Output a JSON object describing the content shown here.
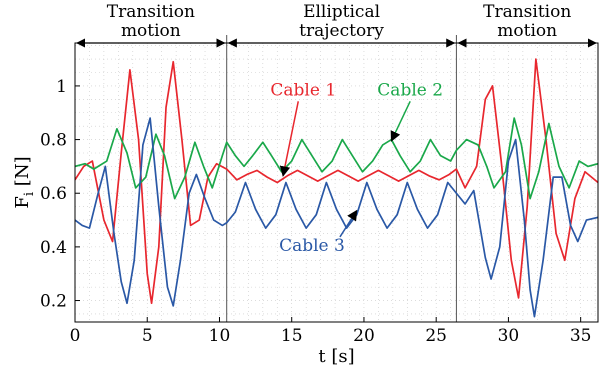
{
  "chart_data": {
    "type": "line",
    "xlabel": "t [s]",
    "ylabel": "F_i [N]",
    "xlim": [
      0,
      36.2
    ],
    "ylim": [
      0.12,
      1.16
    ],
    "xticks": [
      0,
      5,
      10,
      15,
      20,
      25,
      30,
      35
    ],
    "yticks": [
      0.2,
      0.4,
      0.6,
      0.8,
      1.0
    ],
    "ytick_labels": [
      "0.2",
      "0.4",
      "0.6",
      "0.8",
      "1"
    ],
    "grid": "minor-dotted",
    "phase_boundaries": [
      10.5,
      26.4
    ],
    "phases": [
      {
        "label_line1": "Transition",
        "label_line2": "motion",
        "from": 0,
        "to": 10.5
      },
      {
        "label_line1": "Elliptical",
        "label_line2": "trajectory",
        "from": 10.5,
        "to": 26.4
      },
      {
        "label_line1": "Transition",
        "label_line2": "motion",
        "from": 26.4,
        "to": 36.2
      }
    ],
    "series": [
      {
        "name": "Cable 1",
        "color": "#e8272e",
        "points": [
          [
            0,
            0.65
          ],
          [
            0.6,
            0.7
          ],
          [
            1.2,
            0.72
          ],
          [
            2.0,
            0.5
          ],
          [
            2.6,
            0.42
          ],
          [
            3.2,
            0.75
          ],
          [
            3.8,
            1.06
          ],
          [
            4.4,
            0.8
          ],
          [
            5.0,
            0.3
          ],
          [
            5.3,
            0.19
          ],
          [
            5.8,
            0.4
          ],
          [
            6.3,
            0.92
          ],
          [
            6.8,
            1.09
          ],
          [
            7.4,
            0.8
          ],
          [
            8.0,
            0.48
          ],
          [
            8.6,
            0.5
          ],
          [
            9.2,
            0.66
          ],
          [
            9.8,
            0.71
          ],
          [
            10.5,
            0.69
          ],
          [
            11.2,
            0.65
          ],
          [
            11.9,
            0.67
          ],
          [
            12.6,
            0.685
          ],
          [
            13.3,
            0.66
          ],
          [
            14.0,
            0.64
          ],
          [
            14.7,
            0.665
          ],
          [
            15.4,
            0.685
          ],
          [
            16.1,
            0.665
          ],
          [
            16.8,
            0.645
          ],
          [
            17.5,
            0.665
          ],
          [
            18.2,
            0.685
          ],
          [
            18.9,
            0.665
          ],
          [
            19.6,
            0.645
          ],
          [
            20.3,
            0.665
          ],
          [
            21.0,
            0.685
          ],
          [
            21.7,
            0.665
          ],
          [
            22.4,
            0.645
          ],
          [
            23.1,
            0.665
          ],
          [
            23.8,
            0.685
          ],
          [
            24.5,
            0.665
          ],
          [
            25.2,
            0.65
          ],
          [
            25.9,
            0.67
          ],
          [
            26.4,
            0.69
          ],
          [
            27.0,
            0.62
          ],
          [
            27.8,
            0.7
          ],
          [
            28.4,
            0.95
          ],
          [
            28.9,
            1.0
          ],
          [
            29.5,
            0.72
          ],
          [
            30.2,
            0.35
          ],
          [
            30.7,
            0.21
          ],
          [
            31.3,
            0.55
          ],
          [
            31.9,
            1.1
          ],
          [
            32.6,
            0.8
          ],
          [
            33.3,
            0.45
          ],
          [
            33.9,
            0.35
          ],
          [
            34.6,
            0.58
          ],
          [
            35.3,
            0.68
          ],
          [
            36.2,
            0.64
          ]
        ]
      },
      {
        "name": "Cable 2",
        "color": "#1aa84a",
        "points": [
          [
            0,
            0.7
          ],
          [
            0.7,
            0.71
          ],
          [
            1.3,
            0.69
          ],
          [
            2.2,
            0.72
          ],
          [
            2.9,
            0.84
          ],
          [
            3.6,
            0.75
          ],
          [
            4.2,
            0.62
          ],
          [
            4.9,
            0.66
          ],
          [
            5.6,
            0.82
          ],
          [
            6.2,
            0.74
          ],
          [
            6.9,
            0.58
          ],
          [
            7.6,
            0.66
          ],
          [
            8.3,
            0.79
          ],
          [
            8.9,
            0.7
          ],
          [
            9.5,
            0.62
          ],
          [
            10.2,
            0.74
          ],
          [
            10.5,
            0.79
          ],
          [
            11.1,
            0.74
          ],
          [
            11.7,
            0.7
          ],
          [
            12.3,
            0.74
          ],
          [
            13.0,
            0.79
          ],
          [
            13.6,
            0.74
          ],
          [
            14.3,
            0.68
          ],
          [
            15.0,
            0.72
          ],
          [
            15.7,
            0.8
          ],
          [
            16.4,
            0.74
          ],
          [
            17.1,
            0.68
          ],
          [
            17.8,
            0.72
          ],
          [
            18.5,
            0.8
          ],
          [
            19.2,
            0.74
          ],
          [
            19.9,
            0.68
          ],
          [
            20.6,
            0.72
          ],
          [
            21.3,
            0.78
          ],
          [
            21.9,
            0.8
          ],
          [
            22.5,
            0.74
          ],
          [
            23.2,
            0.68
          ],
          [
            23.9,
            0.72
          ],
          [
            24.6,
            0.8
          ],
          [
            25.3,
            0.74
          ],
          [
            26.0,
            0.72
          ],
          [
            26.4,
            0.76
          ],
          [
            27.1,
            0.8
          ],
          [
            27.9,
            0.78
          ],
          [
            28.5,
            0.7
          ],
          [
            29.0,
            0.62
          ],
          [
            29.8,
            0.68
          ],
          [
            30.4,
            0.88
          ],
          [
            30.9,
            0.78
          ],
          [
            31.5,
            0.58
          ],
          [
            32.1,
            0.68
          ],
          [
            32.8,
            0.86
          ],
          [
            33.5,
            0.7
          ],
          [
            34.2,
            0.62
          ],
          [
            34.9,
            0.72
          ],
          [
            35.5,
            0.7
          ],
          [
            36.2,
            0.71
          ]
        ]
      },
      {
        "name": "Cable 3",
        "color": "#2a58a6",
        "points": [
          [
            0,
            0.5
          ],
          [
            0.5,
            0.48
          ],
          [
            1.0,
            0.47
          ],
          [
            1.6,
            0.6
          ],
          [
            2.1,
            0.7
          ],
          [
            2.7,
            0.45
          ],
          [
            3.2,
            0.27
          ],
          [
            3.6,
            0.19
          ],
          [
            4.1,
            0.35
          ],
          [
            4.7,
            0.78
          ],
          [
            5.2,
            0.88
          ],
          [
            5.8,
            0.55
          ],
          [
            6.4,
            0.25
          ],
          [
            6.8,
            0.18
          ],
          [
            7.3,
            0.35
          ],
          [
            7.9,
            0.6
          ],
          [
            8.4,
            0.67
          ],
          [
            9.0,
            0.58
          ],
          [
            9.6,
            0.5
          ],
          [
            10.2,
            0.48
          ],
          [
            10.5,
            0.49
          ],
          [
            11.1,
            0.53
          ],
          [
            11.8,
            0.64
          ],
          [
            12.5,
            0.54
          ],
          [
            13.2,
            0.47
          ],
          [
            13.9,
            0.52
          ],
          [
            14.6,
            0.64
          ],
          [
            15.3,
            0.54
          ],
          [
            16.0,
            0.47
          ],
          [
            16.7,
            0.52
          ],
          [
            17.4,
            0.64
          ],
          [
            18.1,
            0.54
          ],
          [
            18.8,
            0.47
          ],
          [
            19.5,
            0.52
          ],
          [
            20.2,
            0.64
          ],
          [
            20.9,
            0.54
          ],
          [
            21.6,
            0.47
          ],
          [
            22.3,
            0.52
          ],
          [
            23.0,
            0.64
          ],
          [
            23.7,
            0.54
          ],
          [
            24.4,
            0.47
          ],
          [
            25.1,
            0.52
          ],
          [
            25.8,
            0.64
          ],
          [
            26.4,
            0.6
          ],
          [
            27.0,
            0.56
          ],
          [
            27.6,
            0.61
          ],
          [
            28.4,
            0.36
          ],
          [
            28.8,
            0.28
          ],
          [
            29.4,
            0.4
          ],
          [
            30.0,
            0.72
          ],
          [
            30.5,
            0.8
          ],
          [
            31.1,
            0.5
          ],
          [
            31.5,
            0.24
          ],
          [
            31.8,
            0.14
          ],
          [
            32.4,
            0.35
          ],
          [
            33.1,
            0.66
          ],
          [
            33.7,
            0.66
          ],
          [
            34.3,
            0.48
          ],
          [
            34.8,
            0.42
          ],
          [
            35.4,
            0.5
          ],
          [
            36.2,
            0.51
          ]
        ]
      }
    ],
    "annotations": [
      {
        "text": "Cable 1",
        "series": "Cable 1",
        "label_x": 15.8,
        "label_y": 0.965,
        "arrow_to_x": 14.4,
        "arrow_to_y": 0.665
      },
      {
        "text": "Cable 2",
        "series": "Cable 2",
        "label_x": 23.2,
        "label_y": 0.965,
        "arrow_to_x": 21.9,
        "arrow_to_y": 0.795
      },
      {
        "text": "Cable 3",
        "series": "Cable 3",
        "label_x": 16.4,
        "label_y": 0.385,
        "arrow_to_x": 19.5,
        "arrow_to_y": 0.535
      }
    ]
  }
}
